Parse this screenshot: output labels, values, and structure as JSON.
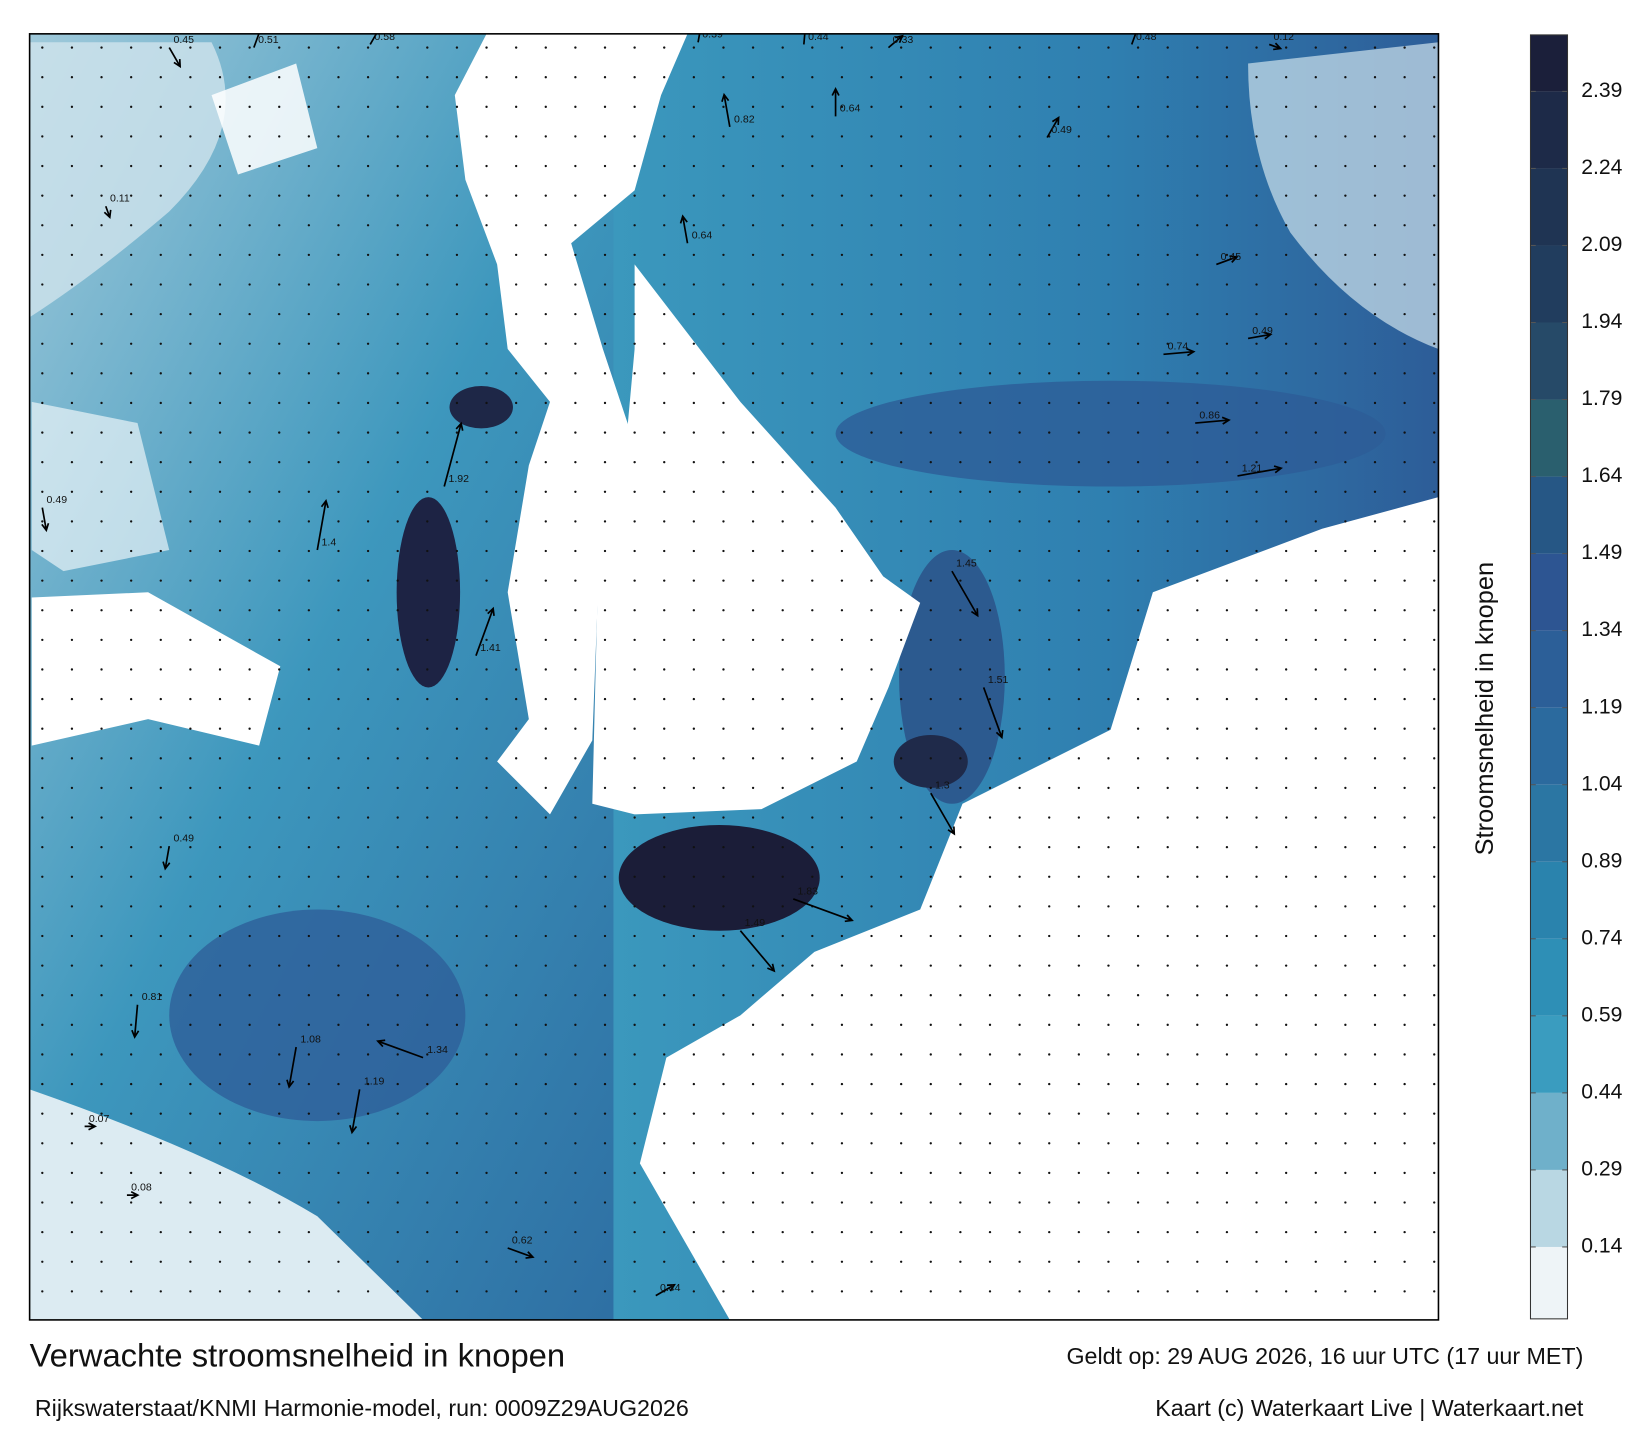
{
  "title": "Verwachte stroomsnelheid in knopen",
  "valid_time": "Geldt op: 29 AUG 2026, 16 uur UTC (17 uur MET)",
  "model": "Rijkswaterstaat/KNMI Harmonie-model, run: 0009Z29AUG2026",
  "credit": "Kaart (c) Waterkaart Live | Waterkaart.net",
  "colorbar": {
    "label": "Stroomsnelheid in knopen",
    "range": [
      0,
      2.5
    ],
    "ticks": [
      0.14,
      0.29,
      0.44,
      0.59,
      0.74,
      0.89,
      1.04,
      1.19,
      1.34,
      1.49,
      1.64,
      1.79,
      1.94,
      2.09,
      2.24,
      2.39
    ],
    "colors": [
      "#eef4f7",
      "#b9d7e3",
      "#6fb0ca",
      "#3a9cbf",
      "#2e8fb6",
      "#2a83ad",
      "#2b76a3",
      "#2b6a9e",
      "#2c5f98",
      "#2d5592",
      "#265785",
      "#2a5f6e",
      "#264a68",
      "#213d5e",
      "#1f3453",
      "#1d2a48",
      "#1b1f3a"
    ]
  },
  "currents": [
    0.45,
    0.51,
    0.58,
    0.39,
    0.44,
    0.33,
    0.48,
    0.12,
    0.64,
    0.82,
    0.64,
    0.49,
    0.45,
    0.49,
    0.74,
    0.86,
    1.21,
    1.45,
    1.51,
    1.3,
    1.83,
    1.49,
    1.41,
    1.92,
    1.4,
    0.49,
    0.81,
    1.08,
    1.19,
    1.34,
    0.62,
    0.44,
    0.08,
    0.07,
    0.11,
    0.49
  ]
}
